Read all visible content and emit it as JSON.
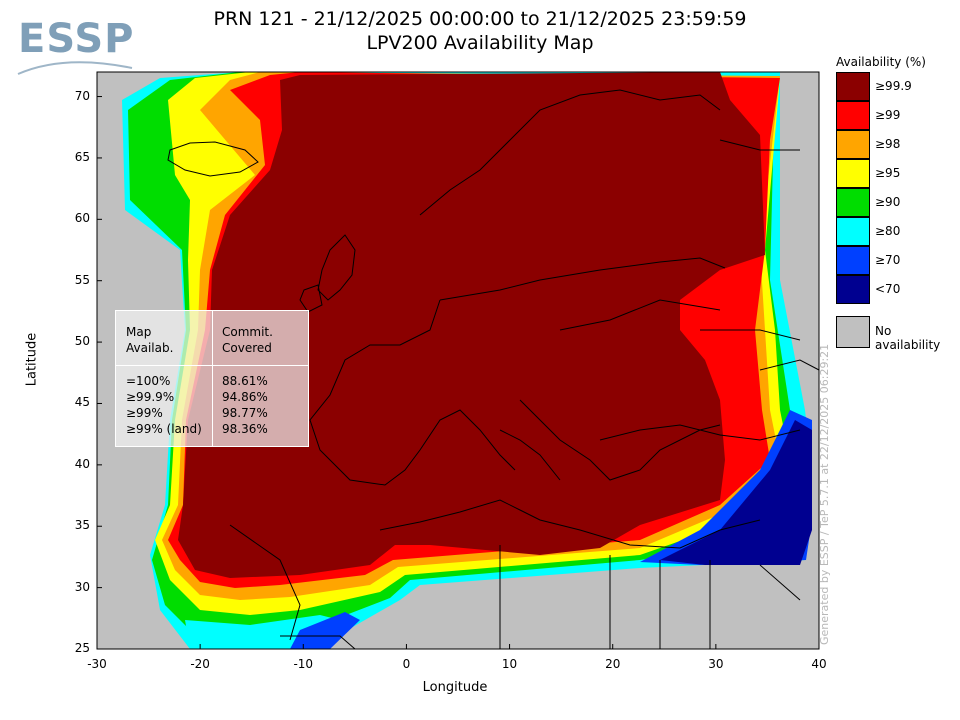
{
  "header": {
    "title_line1": "PRN 121 - 21/12/2025 00:00:00 to 21/12/2025 23:59:59",
    "title_line2": "LPV200 Availability Map",
    "logo_text": "ESSP"
  },
  "axes": {
    "xlabel": "Longitude",
    "ylabel": "Latitude",
    "x_ticks": [
      "-30",
      "-20",
      "-10",
      "0",
      "10",
      "20",
      "30",
      "40"
    ],
    "y_ticks": [
      "70",
      "65",
      "60",
      "55",
      "50",
      "45",
      "40",
      "35",
      "30",
      "25"
    ],
    "x_range": [
      -30,
      40
    ],
    "y_range": [
      25,
      72
    ]
  },
  "legend": {
    "title": "Availability (%)",
    "items": [
      {
        "label": "≥99.9",
        "color": "#8b0000"
      },
      {
        "label": "≥99",
        "color": "#ff0000"
      },
      {
        "label": "≥98",
        "color": "#ffa500"
      },
      {
        "label": "≥95",
        "color": "#ffff00"
      },
      {
        "label": "≥90",
        "color": "#00dd00"
      },
      {
        "label": "≥80",
        "color": "#00ffff"
      },
      {
        "label": "≥70",
        "color": "#0040ff"
      },
      {
        "label": "<70",
        "color": "#000090"
      }
    ],
    "no_availability": {
      "label": "No availability",
      "color": "#c0c0c0"
    }
  },
  "stats_table": {
    "header_col1": [
      "Map",
      "Availab."
    ],
    "header_col2": [
      "Commit.",
      "Covered"
    ],
    "rows": [
      {
        "label": "=100%",
        "value": "88.61%"
      },
      {
        "label": "≥99.9%",
        "value": "94.86%"
      },
      {
        "label": "≥99%",
        "value": "98.77%"
      },
      {
        "label": "≥99% (land)",
        "value": "98.36%"
      }
    ]
  },
  "credit": "Generated by ESSP / TeP 5.7.1 at 22/12/2025 06:29:21"
}
